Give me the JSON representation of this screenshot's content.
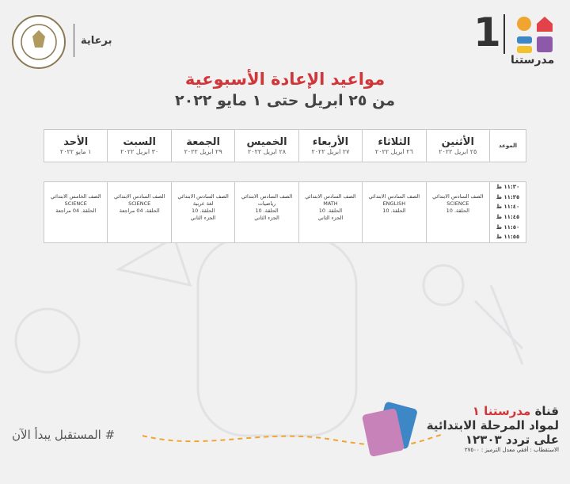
{
  "header": {
    "sponsor": "برعاية",
    "logo_number": "1",
    "logo_name": "مدرستنا"
  },
  "title": "مواعيد الإعادة الأسبوعية",
  "subtitle": "من ٢٥ ابريل حتى ١ مايو ٢٠٢٢",
  "table": {
    "time_header": "الموعد",
    "days": [
      {
        "name": "الأثنين",
        "date": "٢٥ ابريل ٢٠٢٢"
      },
      {
        "name": "الثلاثاء",
        "date": "٢٦ ابريل ٢٠٢٢"
      },
      {
        "name": "الأربعاء",
        "date": "٢٧ ابريل ٢٠٢٢"
      },
      {
        "name": "الخميس",
        "date": "٢٨ ابريل ٢٠٢٢"
      },
      {
        "name": "الجمعة",
        "date": "٢٩ ابريل ٢٠٢٢"
      },
      {
        "name": "السبت",
        "date": "٣٠ ابريل ٢٠٢٢"
      },
      {
        "name": "الأحد",
        "date": "١ مايو ٢٠٢٢"
      }
    ],
    "times": [
      "١١:٣٠ ظ",
      "١١:٣٥ ظ",
      "١١:٤٠ ظ",
      "١١:٤٥ ظ",
      "١١:٥٠ ظ",
      "١١:٥٥ ظ"
    ],
    "sessions": [
      [
        "الصف السادس الابتدائي",
        "SCIENCE",
        "الحلقة. 10"
      ],
      [
        "الصف السادس الابتدائي",
        "ENGLISH",
        "الحلقة. 10"
      ],
      [
        "الصف السادس الابتدائي",
        "MATH",
        "الحلقة. 10",
        "الجزء الثاني"
      ],
      [
        "الصف السادس الابتدائي",
        "رياضيات",
        "الحلقة. 10",
        "الجزء الثاني"
      ],
      [
        "الصف السادس الابتدائي",
        "لغة عربية",
        "الحلقة. 10",
        "الجزء الثاني"
      ],
      [
        "الصف السادس الابتدائي",
        "SCIENCE",
        "الحلقة. 04 مراجعة"
      ],
      [
        "الصف الخامس الابتدائي",
        "SCIENCE",
        "الحلقة. 04 مراجعة"
      ]
    ]
  },
  "footer": {
    "channel_prefix": "قناة",
    "channel_name": "مدرستنا ١",
    "subjects": "لمواد المرحلة الابتدائية",
    "frequency": "على تردد ١٢٣٠٣",
    "details": "الاستقطاب : أفقي معدل الترميز : ٢٧٥٠٠",
    "hashtag": "# المستقبل يبدأ الآن"
  }
}
